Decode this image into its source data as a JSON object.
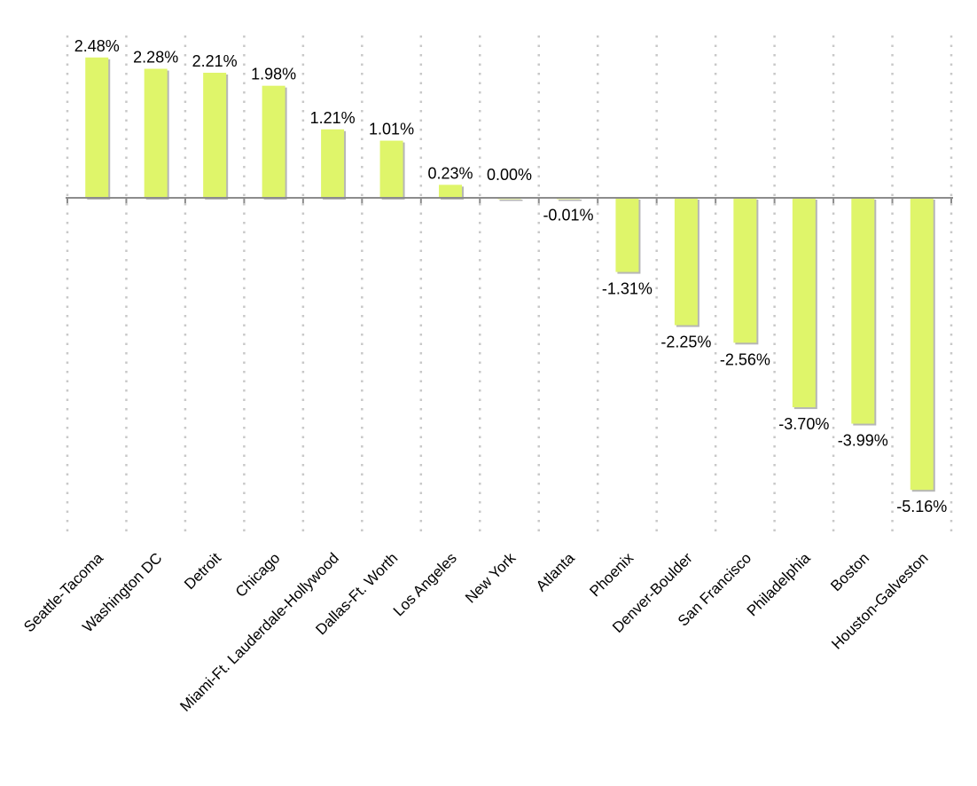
{
  "chart_data": {
    "type": "bar",
    "title": "",
    "xlabel": "",
    "ylabel": "",
    "ylim": [
      -5.9,
      2.65
    ],
    "grid": "vertical dotted",
    "legend": "none",
    "bar_color": "#dff56a",
    "bar_shadow_color": "#7a7a7a",
    "categories": [
      "Seattle-Tacoma",
      "Washington DC",
      "Detroit",
      "Chicago",
      "Miami-Ft. Lauderdale-Hollywood",
      "Dallas-Ft. Worth",
      "Los Angeles",
      "New York",
      "Atlanta",
      "Phoenix",
      "Denver-Boulder",
      "San Francisco",
      "Philadelphia",
      "Boston",
      "Houston-Galveston"
    ],
    "values": [
      2.48,
      2.28,
      2.21,
      1.98,
      1.21,
      1.01,
      0.23,
      0.0,
      -0.01,
      -1.31,
      -2.25,
      -2.56,
      -3.7,
      -3.99,
      -5.16
    ],
    "data_labels": [
      "2.48%",
      "2.28%",
      "2.21%",
      "1.98%",
      "1.21%",
      "1.01%",
      "0.23%",
      "0.00%",
      "-0.01%",
      "-1.31%",
      "-2.25%",
      "-2.56%",
      "-3.70%",
      "-3.99%",
      "-5.16%"
    ]
  }
}
